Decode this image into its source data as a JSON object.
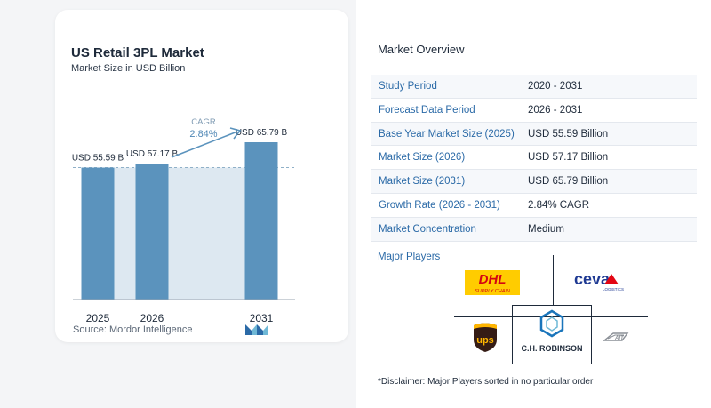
{
  "chart": {
    "title": "US Retail 3PL Market",
    "subtitle": "Market Size in USD Billion",
    "source": "Source:  Mordor Intelligence",
    "cagr_label": "CAGR",
    "cagr_value": "2.84%"
  },
  "chart_data": {
    "type": "bar",
    "title": "US Retail 3PL Market",
    "subtitle": "Market Size in USD Billion",
    "categories": [
      "2025",
      "2026",
      "2031"
    ],
    "values": [
      55.59,
      57.17,
      65.79
    ],
    "value_labels": [
      "USD 55.59 B",
      "USD 57.17 B",
      "USD 65.79 B"
    ],
    "ylabel": "",
    "xlabel": "",
    "ylim": [
      0,
      70
    ],
    "grid": false,
    "colors": {
      "bar": "#5b93bd",
      "highlight": "#dde8f1",
      "accent": "#5b93bd"
    }
  },
  "overview": {
    "title": "Market Overview",
    "rows": [
      {
        "label": "Study Period",
        "value": "2020 - 2031"
      },
      {
        "label": "Forecast Data Period",
        "value": "2026 - 2031"
      },
      {
        "label": "Base Year Market Size (2025)",
        "value": "USD 55.59 Billion"
      },
      {
        "label": "Market Size (2026)",
        "value": "USD 57.17 Billion"
      },
      {
        "label": "Market Size (2031)",
        "value": "USD 65.79 Billion"
      },
      {
        "label": "Growth Rate (2026 - 2031)",
        "value": "2.84% CAGR"
      },
      {
        "label": "Market Concentration",
        "value": "Medium"
      }
    ]
  },
  "players": {
    "title": "Major Players",
    "logos": {
      "dhl": {
        "name": "DHL",
        "tagline": "SUPPLY CHAIN"
      },
      "ceva": {
        "name": "ceva",
        "tagline": "LOGISTICS"
      },
      "ups": {
        "name": "ups"
      },
      "chr": {
        "name": "C.H. ROBINSON"
      },
      "att": {
        "name": "AIT"
      }
    },
    "disclaimer": "*Disclaimer: Major Players sorted in no particular order"
  }
}
